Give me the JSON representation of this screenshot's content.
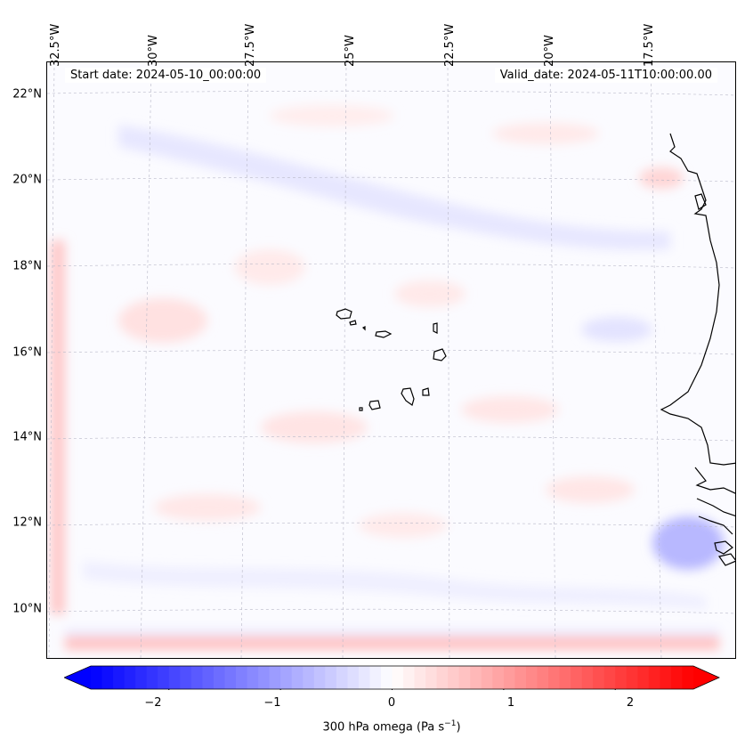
{
  "map": {
    "start_label": "Start date: 2024-05-10_00:00:00",
    "valid_label": "Valid_date: 2024-05-11T10:00:00.00",
    "lon_labels": [
      "32.5°W",
      "30°W",
      "27.5°W",
      "25°W",
      "22.5°W",
      "20°W",
      "17.5°W"
    ],
    "lat_labels": [
      "22°N",
      "20°N",
      "18°N",
      "16°N",
      "14°N",
      "12°N",
      "10°N"
    ],
    "coastline_color": "#000000",
    "gridline_color": "#b0b0b0"
  },
  "colorbar": {
    "ticks": [
      "−2",
      "−1",
      "0",
      "1",
      "2"
    ],
    "min": -2.7,
    "max": 2.7,
    "label_main": "300 hPa omega (Pa s",
    "label_sup": "−1",
    "label_end": ")",
    "color_low": "#0000ff",
    "color_mid": "#ffffff",
    "color_high": "#ff0000"
  }
}
